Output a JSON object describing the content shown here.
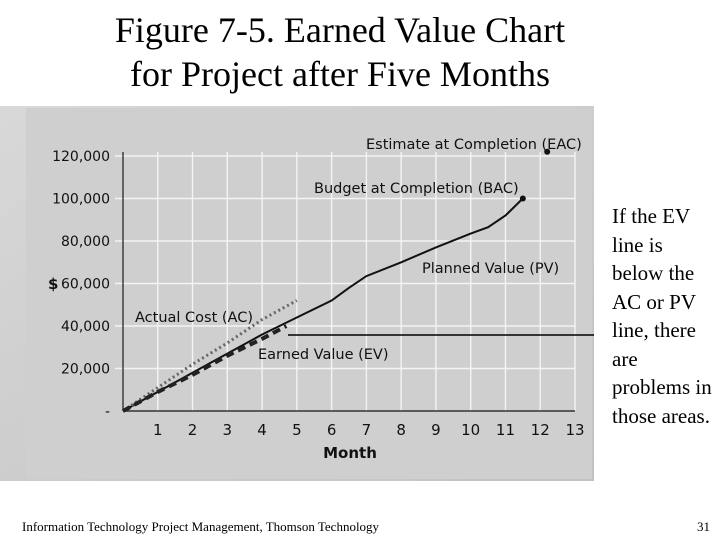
{
  "slide": {
    "title_line1": "Figure 7-5. Earned Value Chart",
    "title_line2": "for Project after Five Months",
    "side_note": "If the EV line is below the AC or PV line, there are problems in those areas.",
    "footer": "Information Technology Project Management, Thomson Technology",
    "page_number": "31"
  },
  "chart_data": {
    "type": "line",
    "xlabel": "Month",
    "ylabel": "$",
    "x_ticks": [
      "1",
      "2",
      "3",
      "4",
      "5",
      "6",
      "7",
      "8",
      "9",
      "10",
      "11",
      "12",
      "13"
    ],
    "y_ticks": [
      "-",
      "20,000",
      "40,000",
      "60,000",
      "80,000",
      "100,000",
      "120,000"
    ],
    "xlim": [
      0,
      13
    ],
    "ylim": [
      0,
      120000
    ],
    "grid": true,
    "series": [
      {
        "name": "Planned Value (PV)",
        "style": "solid",
        "x": [
          0,
          1,
          2,
          3,
          4,
          5,
          6,
          6.5,
          7,
          8,
          9,
          10,
          10.5,
          11,
          11.5
        ],
        "y": [
          0,
          9000,
          18000,
          27000,
          36000,
          44000,
          52000,
          58000,
          63500,
          70000,
          77000,
          83500,
          86500,
          92000,
          100000
        ]
      },
      {
        "name": "Actual Cost (AC)",
        "style": "dotted",
        "x": [
          0,
          1,
          2,
          3,
          4,
          5
        ],
        "y": [
          0,
          11000,
          22000,
          32000,
          43000,
          52000
        ]
      },
      {
        "name": "Earned Value (EV)",
        "style": "dashed",
        "x": [
          0,
          1,
          2,
          3,
          4,
          4.7
        ],
        "y": [
          0,
          9000,
          17000,
          26000,
          34000,
          40000
        ]
      }
    ],
    "points": [
      {
        "name": "Budget at Completion (BAC)",
        "x": 11.5,
        "y": 100000
      },
      {
        "name": "Estimate at Completion (EAC)",
        "x": 12.2,
        "y": 122000
      }
    ],
    "annotations": [
      {
        "text": "Estimate at Completion (EAC)",
        "placement": "top-right"
      },
      {
        "text": "Budget at Completion (BAC)",
        "placement": "upper-middle"
      },
      {
        "text": "Planned Value (PV)",
        "placement": "right"
      },
      {
        "text": "Actual Cost (AC)",
        "placement": "left"
      },
      {
        "text": "Earned Value (EV)",
        "placement": "center"
      }
    ]
  }
}
